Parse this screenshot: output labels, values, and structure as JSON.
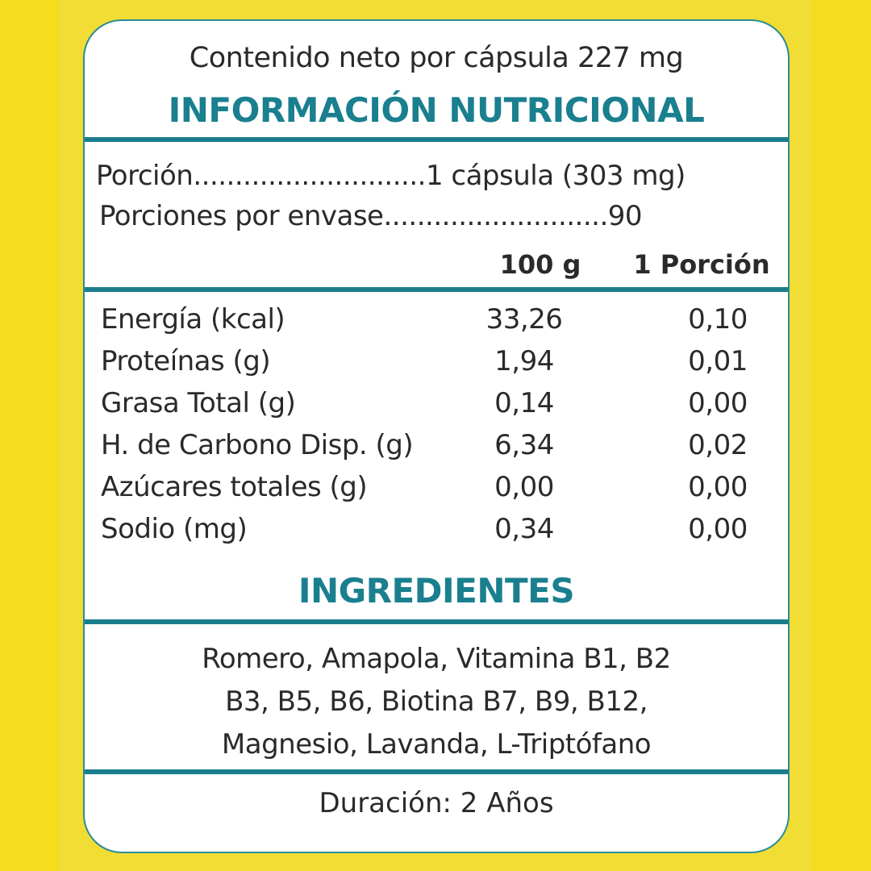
{
  "net_content": "Contenido neto por cápsula 227 mg",
  "title": "INFORMACIÓN NUTRICIONAL",
  "serving": {
    "label": "Porción",
    "dots": "............................",
    "value": "1 cápsula (303 mg)"
  },
  "servings_per": {
    "label": "Porciones por envase",
    "dots": "...........................",
    "value": "90"
  },
  "columns": [
    "100 g",
    "1 Porción"
  ],
  "rows": [
    {
      "name": "Energía (kcal)",
      "per100": "33,26",
      "portion": "0,10"
    },
    {
      "name": "Proteínas (g)",
      "per100": "1,94",
      "portion": "0,01"
    },
    {
      "name": "Grasa Total (g)",
      "per100": "0,14",
      "portion": "0,00"
    },
    {
      "name": "H. de Carbono Disp. (g)",
      "per100": "6,34",
      "portion": "0,02"
    },
    {
      "name": "Azúcares totales (g)",
      "per100": "0,00",
      "portion": "0,00"
    },
    {
      "name": "Sodio (mg)",
      "per100": "0,34",
      "portion": "0,00"
    }
  ],
  "ingredients_title": "INGREDIENTES",
  "ingredients_lines": [
    "Romero, Amapola, Vitamina B1, B2",
    "B3, B5, B6, Biotina B7, B9, B12,",
    "Magnesio, Lavanda, L-Triptófano"
  ],
  "duration": "Duración: 2 Años",
  "colors": {
    "accent": "#1a7f8e",
    "background": "#f1dd33"
  }
}
